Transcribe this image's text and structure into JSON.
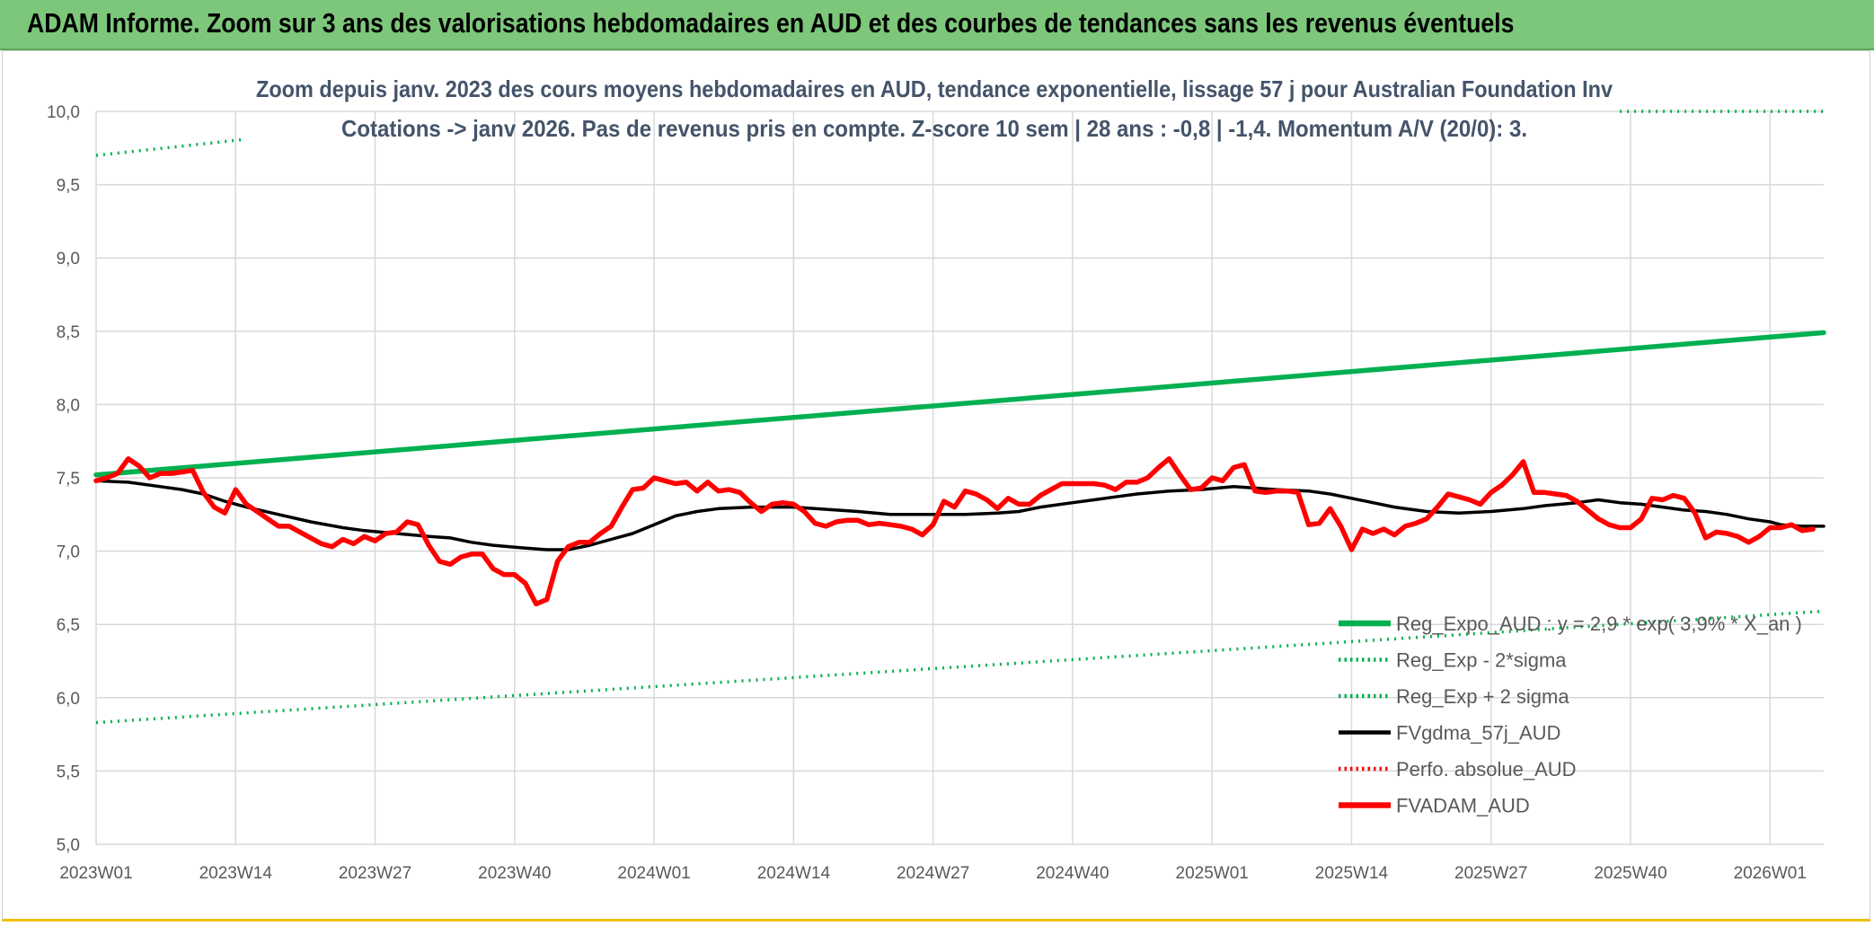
{
  "header": {
    "title": "ADAM Informe. Zoom sur 3 ans des valorisations hebdomadaires en AUD et des courbes de tendances sans les revenus éventuels"
  },
  "colors": {
    "banner": "#7dc77b",
    "trend": "#00b050",
    "smooth": "#000000",
    "price": "#ff0000",
    "grid": "#d9d9d9",
    "text": "#595959",
    "subtitle": "#44546a"
  },
  "chart_data": {
    "type": "line",
    "subtitle": [
      "Zoom depuis janv. 2023 des cours moyens hebdomadaires en AUD, tendance exponentielle, lissage 57 j pour Australian Foundation Inv",
      "Cotations -> janv 2026. Pas de revenus pris en compte. Z-score 10 sem | 28 ans : -0,8 | -1,4. Momentum A/V (20/0): 3."
    ],
    "xlabel": "",
    "ylabel": "",
    "ylim": [
      5.0,
      10.0
    ],
    "y_ticks": [
      "5,0",
      "5,5",
      "6,0",
      "6,5",
      "7,0",
      "7,5",
      "8,0",
      "8,5",
      "9,0",
      "9,5",
      "10,0"
    ],
    "x_ticks": [
      "2023W01",
      "2023W14",
      "2023W27",
      "2023W40",
      "2024W01",
      "2024W14",
      "2024W27",
      "2024W40",
      "2025W01",
      "2025W14",
      "2025W27",
      "2025W40",
      "2026W01"
    ],
    "x_week_range": [
      0,
      161
    ],
    "grid": true,
    "legend_position": "bottom-right",
    "series": [
      {
        "name": "Reg_Expo_AUD : y = 2,9 * exp( 3,9% * X_an )",
        "style": "solid-thick",
        "color": "#00b050",
        "points": [
          [
            0,
            7.52
          ],
          [
            161,
            8.49
          ]
        ]
      },
      {
        "name": "Reg_Exp - 2*sigma",
        "style": "dotted",
        "color": "#00b050",
        "points": [
          [
            0,
            5.83
          ],
          [
            161,
            6.59
          ]
        ]
      },
      {
        "name": "Reg_Exp + 2 sigma",
        "style": "dotted",
        "color": "#00b050",
        "points": [
          [
            0,
            9.7
          ],
          [
            14,
            9.81
          ],
          [
            null,
            null
          ],
          [
            142,
            10.0
          ],
          [
            161,
            10.0
          ]
        ]
      },
      {
        "name": "FVgdma_57j_AUD",
        "style": "solid",
        "color": "#000000",
        "points": [
          [
            0,
            7.48
          ],
          [
            3,
            7.47
          ],
          [
            6,
            7.44
          ],
          [
            8,
            7.42
          ],
          [
            10,
            7.39
          ],
          [
            12,
            7.34
          ],
          [
            14,
            7.3
          ],
          [
            17,
            7.25
          ],
          [
            20,
            7.2
          ],
          [
            23,
            7.16
          ],
          [
            25,
            7.14
          ],
          [
            28,
            7.12
          ],
          [
            31,
            7.1
          ],
          [
            33,
            7.09
          ],
          [
            35,
            7.06
          ],
          [
            37,
            7.04
          ],
          [
            40,
            7.02
          ],
          [
            42,
            7.01
          ],
          [
            44,
            7.01
          ],
          [
            46,
            7.04
          ],
          [
            48,
            7.08
          ],
          [
            50,
            7.12
          ],
          [
            52,
            7.18
          ],
          [
            54,
            7.24
          ],
          [
            56,
            7.27
          ],
          [
            58,
            7.29
          ],
          [
            61,
            7.3
          ],
          [
            63,
            7.3
          ],
          [
            65,
            7.3
          ],
          [
            67,
            7.29
          ],
          [
            69,
            7.28
          ],
          [
            71,
            7.27
          ],
          [
            74,
            7.25
          ],
          [
            78,
            7.25
          ],
          [
            81,
            7.25
          ],
          [
            84,
            7.26
          ],
          [
            86,
            7.27
          ],
          [
            88,
            7.3
          ],
          [
            91,
            7.33
          ],
          [
            93,
            7.35
          ],
          [
            95,
            7.37
          ],
          [
            97,
            7.39
          ],
          [
            100,
            7.41
          ],
          [
            103,
            7.42
          ],
          [
            106,
            7.44
          ],
          [
            108,
            7.43
          ],
          [
            110,
            7.42
          ],
          [
            113,
            7.41
          ],
          [
            115,
            7.39
          ],
          [
            117,
            7.36
          ],
          [
            119,
            7.33
          ],
          [
            121,
            7.3
          ],
          [
            124,
            7.27
          ],
          [
            127,
            7.26
          ],
          [
            130,
            7.27
          ],
          [
            133,
            7.29
          ],
          [
            135,
            7.31
          ],
          [
            138,
            7.33
          ],
          [
            140,
            7.35
          ],
          [
            142,
            7.33
          ],
          [
            144,
            7.32
          ],
          [
            146,
            7.3
          ],
          [
            148,
            7.28
          ],
          [
            150,
            7.27
          ],
          [
            152,
            7.25
          ],
          [
            154,
            7.22
          ],
          [
            156,
            7.2
          ],
          [
            157,
            7.18
          ],
          [
            159,
            7.17
          ],
          [
            161,
            7.17
          ]
        ]
      },
      {
        "name": "Perfo. absolue_AUD",
        "style": "dotted",
        "color": "#ff0000",
        "points": []
      },
      {
        "name": "FVADAM_AUD",
        "style": "solid-thick",
        "color": "#ff0000",
        "points": [
          [
            0,
            7.48
          ],
          [
            1,
            7.5
          ],
          [
            2,
            7.53
          ],
          [
            3,
            7.63
          ],
          [
            4,
            7.58
          ],
          [
            5,
            7.5
          ],
          [
            6,
            7.53
          ],
          [
            7,
            7.53
          ],
          [
            8,
            7.54
          ],
          [
            9,
            7.55
          ],
          [
            10,
            7.4
          ],
          [
            11,
            7.3
          ],
          [
            12,
            7.26
          ],
          [
            13,
            7.42
          ],
          [
            14,
            7.32
          ],
          [
            15,
            7.27
          ],
          [
            16,
            7.22
          ],
          [
            17,
            7.17
          ],
          [
            18,
            7.17
          ],
          [
            19,
            7.13
          ],
          [
            20,
            7.09
          ],
          [
            21,
            7.05
          ],
          [
            22,
            7.03
          ],
          [
            23,
            7.08
          ],
          [
            24,
            7.05
          ],
          [
            25,
            7.1
          ],
          [
            26,
            7.07
          ],
          [
            27,
            7.12
          ],
          [
            28,
            7.13
          ],
          [
            29,
            7.2
          ],
          [
            30,
            7.18
          ],
          [
            31,
            7.04
          ],
          [
            32,
            6.93
          ],
          [
            33,
            6.91
          ],
          [
            34,
            6.96
          ],
          [
            35,
            6.98
          ],
          [
            36,
            6.98
          ],
          [
            37,
            6.88
          ],
          [
            38,
            6.84
          ],
          [
            39,
            6.84
          ],
          [
            40,
            6.78
          ],
          [
            41,
            6.64
          ],
          [
            42,
            6.67
          ],
          [
            43,
            6.93
          ],
          [
            44,
            7.03
          ],
          [
            45,
            7.06
          ],
          [
            46,
            7.06
          ],
          [
            47,
            7.12
          ],
          [
            48,
            7.17
          ],
          [
            49,
            7.3
          ],
          [
            50,
            7.42
          ],
          [
            51,
            7.43
          ],
          [
            52,
            7.5
          ],
          [
            53,
            7.48
          ],
          [
            54,
            7.46
          ],
          [
            55,
            7.47
          ],
          [
            56,
            7.41
          ],
          [
            57,
            7.47
          ],
          [
            58,
            7.41
          ],
          [
            59,
            7.42
          ],
          [
            60,
            7.4
          ],
          [
            61,
            7.33
          ],
          [
            62,
            7.27
          ],
          [
            63,
            7.32
          ],
          [
            64,
            7.33
          ],
          [
            65,
            7.32
          ],
          [
            66,
            7.27
          ],
          [
            67,
            7.19
          ],
          [
            68,
            7.17
          ],
          [
            69,
            7.2
          ],
          [
            70,
            7.21
          ],
          [
            71,
            7.21
          ],
          [
            72,
            7.18
          ],
          [
            73,
            7.19
          ],
          [
            74,
            7.18
          ],
          [
            75,
            7.17
          ],
          [
            76,
            7.15
          ],
          [
            77,
            7.11
          ],
          [
            78,
            7.18
          ],
          [
            79,
            7.34
          ],
          [
            80,
            7.3
          ],
          [
            81,
            7.41
          ],
          [
            82,
            7.39
          ],
          [
            83,
            7.35
          ],
          [
            84,
            7.29
          ],
          [
            85,
            7.36
          ],
          [
            86,
            7.32
          ],
          [
            87,
            7.32
          ],
          [
            88,
            7.38
          ],
          [
            89,
            7.42
          ],
          [
            90,
            7.46
          ],
          [
            91,
            7.46
          ],
          [
            92,
            7.46
          ],
          [
            93,
            7.46
          ],
          [
            94,
            7.45
          ],
          [
            95,
            7.42
          ],
          [
            96,
            7.47
          ],
          [
            97,
            7.47
          ],
          [
            98,
            7.5
          ],
          [
            99,
            7.57
          ],
          [
            100,
            7.63
          ],
          [
            101,
            7.52
          ],
          [
            102,
            7.42
          ],
          [
            103,
            7.43
          ],
          [
            104,
            7.5
          ],
          [
            105,
            7.48
          ],
          [
            106,
            7.57
          ],
          [
            107,
            7.59
          ],
          [
            108,
            7.41
          ],
          [
            109,
            7.4
          ],
          [
            110,
            7.41
          ],
          [
            111,
            7.41
          ],
          [
            112,
            7.4
          ],
          [
            113,
            7.18
          ],
          [
            114,
            7.19
          ],
          [
            115,
            7.29
          ],
          [
            116,
            7.17
          ],
          [
            117,
            7.01
          ],
          [
            118,
            7.15
          ],
          [
            119,
            7.12
          ],
          [
            120,
            7.15
          ],
          [
            121,
            7.11
          ],
          [
            122,
            7.17
          ],
          [
            123,
            7.19
          ],
          [
            124,
            7.22
          ],
          [
            125,
            7.3
          ],
          [
            126,
            7.39
          ],
          [
            127,
            7.37
          ],
          [
            128,
            7.35
          ],
          [
            129,
            7.32
          ],
          [
            130,
            7.4
          ],
          [
            131,
            7.45
          ],
          [
            132,
            7.52
          ],
          [
            133,
            7.61
          ],
          [
            134,
            7.4
          ],
          [
            135,
            7.4
          ],
          [
            136,
            7.39
          ],
          [
            137,
            7.38
          ],
          [
            138,
            7.34
          ],
          [
            139,
            7.28
          ],
          [
            140,
            7.22
          ],
          [
            141,
            7.18
          ],
          [
            142,
            7.16
          ],
          [
            143,
            7.16
          ],
          [
            144,
            7.22
          ],
          [
            145,
            7.36
          ],
          [
            146,
            7.35
          ],
          [
            147,
            7.38
          ],
          [
            148,
            7.36
          ],
          [
            149,
            7.26
          ],
          [
            150,
            7.09
          ],
          [
            151,
            7.13
          ],
          [
            152,
            7.12
          ],
          [
            153,
            7.1
          ],
          [
            154,
            7.06
          ],
          [
            155,
            7.1
          ],
          [
            156,
            7.16
          ],
          [
            157,
            7.16
          ],
          [
            158,
            7.18
          ],
          [
            159,
            7.14
          ],
          [
            160,
            7.15
          ]
        ]
      }
    ]
  }
}
